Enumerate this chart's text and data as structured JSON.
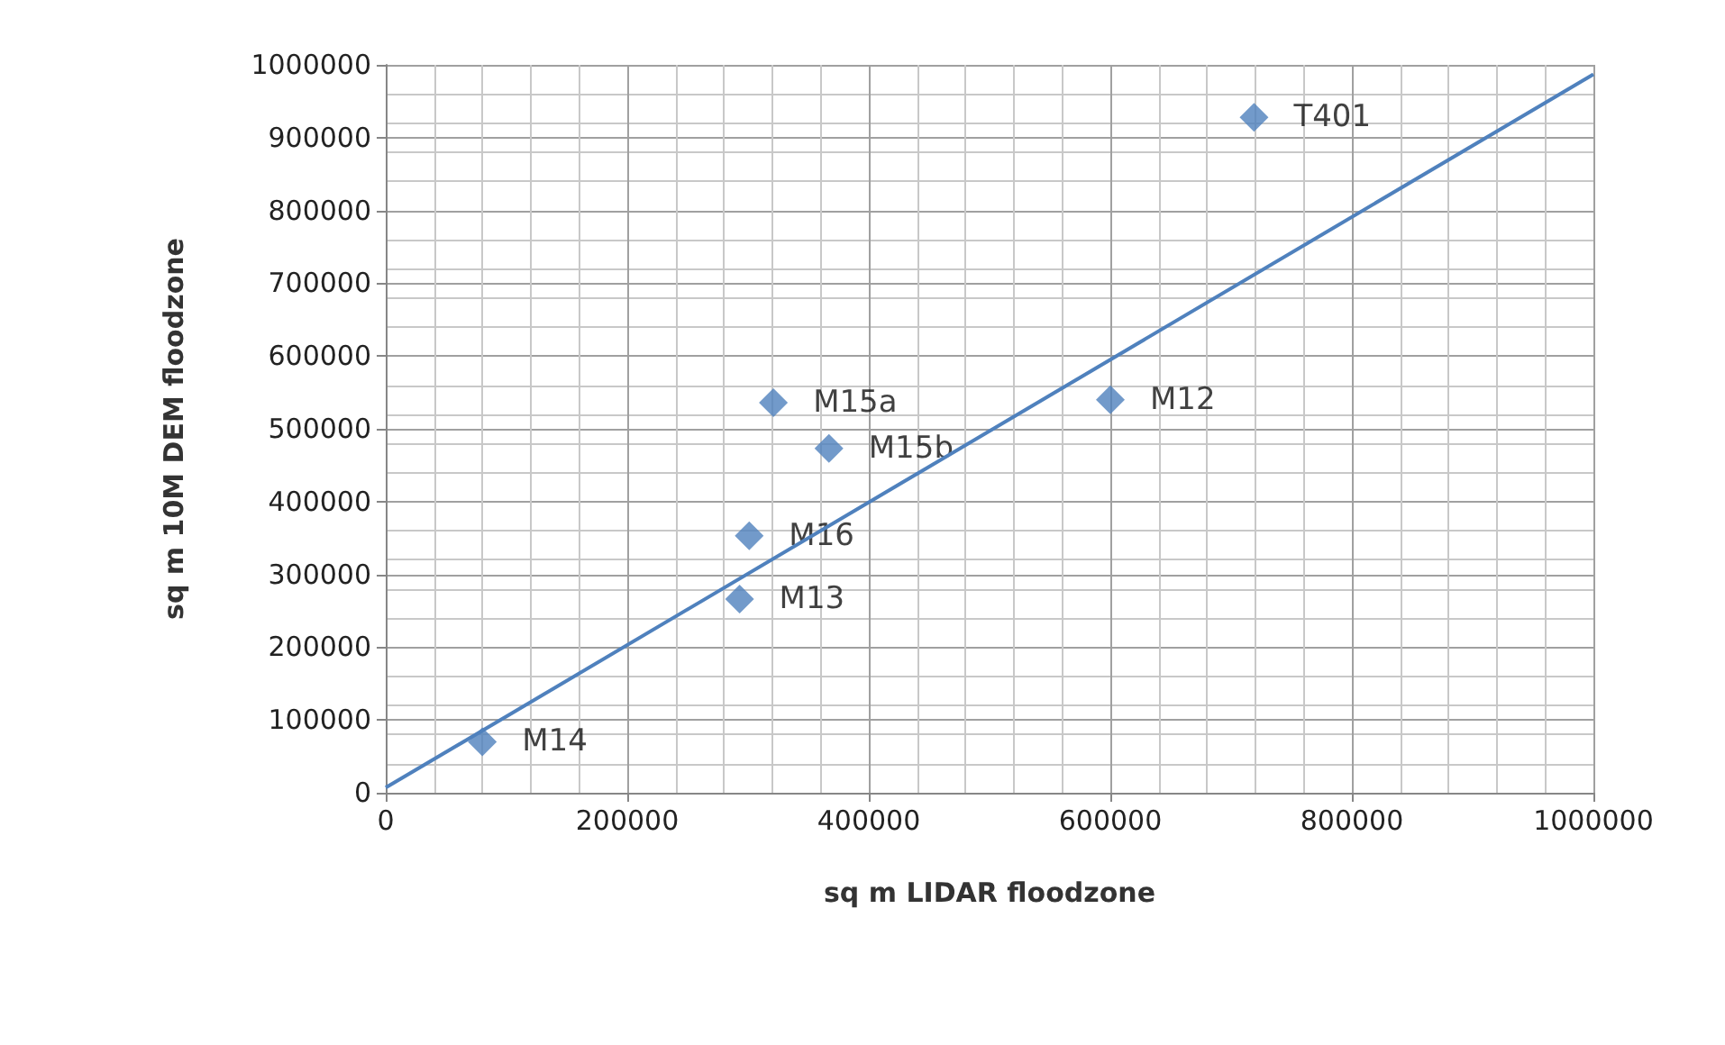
{
  "chart_data": {
    "type": "scatter",
    "xlabel": "sq m LIDAR floodzone",
    "ylabel": "sq m 10M DEM floodzone",
    "x": [
      719000,
      600000,
      321000,
      367000,
      301000,
      293000,
      80000
    ],
    "series": [
      {
        "color": "#4f81bd",
        "marker": "diamond",
        "values": [
          928000,
          540000,
          536000,
          473000,
          353000,
          266000,
          70000
        ]
      },
      {
        "type": "line",
        "color": "#4f81bd",
        "marker": "none",
        "x": [
          0,
          1000000
        ],
        "values": [
          7000,
          987000
        ]
      }
    ],
    "annotations": [
      {
        "text": "T401",
        "x": 719000,
        "y": 928000
      },
      {
        "text": "M12",
        "x": 600000,
        "y": 540000
      },
      {
        "text": "M15a",
        "x": 321000,
        "y": 536000
      },
      {
        "text": "M15b",
        "x": 367000,
        "y": 473000
      },
      {
        "text": "M16",
        "x": 301000,
        "y": 353000
      },
      {
        "text": "M13",
        "x": 293000,
        "y": 266000
      },
      {
        "text": "M14",
        "x": 80000,
        "y": 70000
      }
    ],
    "xlim": [
      0,
      1000000
    ],
    "xticks": [
      0,
      200000,
      400000,
      600000,
      800000,
      1000000
    ],
    "ylim": [
      0,
      1000000
    ],
    "yticks": [
      0,
      100000,
      200000,
      300000,
      400000,
      500000,
      600000,
      700000,
      800000,
      900000,
      1000000
    ],
    "grid": true
  }
}
